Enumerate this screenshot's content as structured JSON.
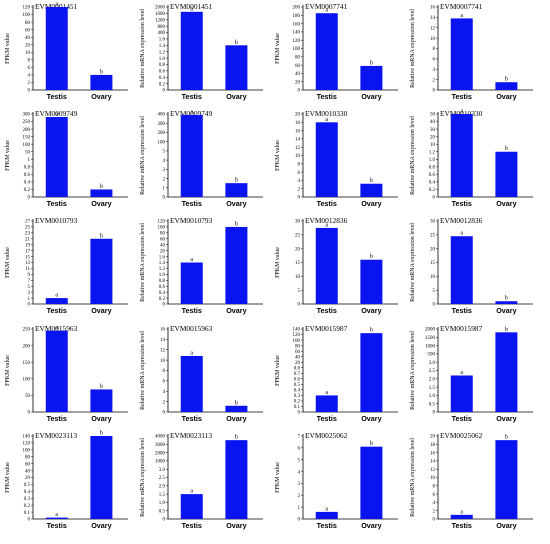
{
  "colors": {
    "bar": "#0A14F0",
    "break_line": "#ffffff",
    "axis": "#000000"
  },
  "chart_data": [
    {
      "type": "bar",
      "title": "EVM0001451",
      "ylabel": "FPKM value",
      "categories": [
        "Testis",
        "Ovary"
      ],
      "values": [
        120,
        4
      ],
      "significance": [
        "a",
        "b"
      ],
      "yticks": [
        "0",
        "2",
        "4",
        "6",
        "8",
        "10",
        "20",
        "40",
        "60",
        "80",
        "100",
        "120"
      ],
      "axis_break": true
    },
    {
      "type": "bar",
      "title": "EVM0001451",
      "ylabel": "Relative mRNA expression level",
      "categories": [
        "Testis",
        "Ovary"
      ],
      "values": [
        1700,
        1.4
      ],
      "significance": [
        "a",
        "b"
      ],
      "yticks": [
        "0",
        "0.2",
        "0.4",
        "0.6",
        "0.8",
        "1.0",
        "1.2",
        "1.4",
        "1.6",
        "400",
        "800",
        "1200",
        "1600",
        "2000"
      ],
      "axis_break": true
    },
    {
      "type": "bar",
      "title": "EVM0007741",
      "ylabel": "FPKM value",
      "categories": [
        "Testis",
        "Ovary"
      ],
      "values": [
        185,
        58
      ],
      "significance": [
        "a",
        "b"
      ],
      "yticks": [
        "0",
        "20",
        "40",
        "60",
        "80",
        "100",
        "120",
        "140",
        "160",
        "180",
        "200"
      ],
      "axis_break": false
    },
    {
      "type": "bar",
      "title": "EVM0007741",
      "ylabel": "Relative mRNA expression level",
      "categories": [
        "Testis",
        "Ovary"
      ],
      "values": [
        13.8,
        1.5
      ],
      "significance": [
        "a",
        "b"
      ],
      "yticks": [
        "0",
        "2",
        "4",
        "6",
        "8",
        "10",
        "12",
        "14",
        "16"
      ],
      "axis_break": false
    },
    {
      "type": "bar",
      "title": "EVM0009749",
      "ylabel": "FPKM value",
      "categories": [
        "Testis",
        "Ovary"
      ],
      "values": [
        280,
        0.2
      ],
      "significance": [
        "a",
        "b"
      ],
      "yticks": [
        "0",
        "0.2",
        "0.4",
        "0.6",
        "0.8",
        "1",
        "50",
        "100",
        "150",
        "200",
        "250",
        "300"
      ],
      "axis_break": true
    },
    {
      "type": "bar",
      "title": "EVM0009749",
      "ylabel": "Relative mRNA expression level",
      "categories": [
        "Testis",
        "Ovary"
      ],
      "values": [
        390,
        1.5
      ],
      "significance": [
        "a",
        "b"
      ],
      "yticks": [
        "0",
        "1",
        "2",
        "3",
        "4",
        "5",
        "100",
        "200",
        "300",
        "400"
      ],
      "axis_break": true
    },
    {
      "type": "bar",
      "title": "EVM0010330",
      "ylabel": "FPKM value",
      "categories": [
        "Testis",
        "Ovary"
      ],
      "values": [
        18,
        3.2
      ],
      "significance": [
        "a",
        "b"
      ],
      "yticks": [
        "0",
        "2",
        "4",
        "6",
        "8",
        "10",
        "12",
        "14",
        "16",
        "18",
        "20"
      ],
      "axis_break": false
    },
    {
      "type": "bar",
      "title": "EVM0010330",
      "ylabel": "Relative mRNA expression level",
      "categories": [
        "Testis",
        "Ovary"
      ],
      "values": [
        50,
        1.2
      ],
      "significance": [
        "a",
        "b"
      ],
      "yticks": [
        "0",
        "0.2",
        "0.4",
        "0.6",
        "0.8",
        "1.0",
        "1.2",
        "10",
        "20",
        "30",
        "40",
        "50"
      ],
      "axis_break": true
    },
    {
      "type": "bar",
      "title": "EVM0010793",
      "ylabel": "FPKM value",
      "categories": [
        "Testis",
        "Ovary"
      ],
      "values": [
        1,
        21
      ],
      "significance": [
        "a",
        "b"
      ],
      "yticks": [
        "0",
        "1",
        "3",
        "5",
        "7",
        "9",
        "11",
        "13",
        "15",
        "17",
        "19",
        "21",
        "23",
        "25",
        "27"
      ],
      "axis_break": false
    },
    {
      "type": "bar",
      "title": "EVM0010793",
      "ylabel": "Relative mRNA expression level",
      "categories": [
        "Testis",
        "Ovary"
      ],
      "values": [
        1.4,
        100
      ],
      "significance": [
        "a",
        "b"
      ],
      "yticks": [
        "0",
        "0.2",
        "0.4",
        "0.6",
        "0.8",
        "1.0",
        "1.2",
        "1.4",
        "1.6",
        "20",
        "40",
        "60",
        "80",
        "100",
        "120"
      ],
      "axis_break": true
    },
    {
      "type": "bar",
      "title": "EVM0012836",
      "ylabel": "FPKM value",
      "categories": [
        "Testis",
        "Ovary"
      ],
      "values": [
        27.5,
        16
      ],
      "significance": [
        "a",
        "b"
      ],
      "yticks": [
        "0",
        "5",
        "10",
        "15",
        "20",
        "25",
        "30"
      ],
      "axis_break": false
    },
    {
      "type": "bar",
      "title": "EVM0012836",
      "ylabel": "Relative mRNA expression level",
      "categories": [
        "Testis",
        "Ovary"
      ],
      "values": [
        24.5,
        1
      ],
      "significance": [
        "a",
        "b"
      ],
      "yticks": [
        "0",
        "5",
        "10",
        "15",
        "20",
        "25",
        "30"
      ],
      "axis_break": false
    },
    {
      "type": "bar",
      "title": "EVM0015963",
      "ylabel": "FPKM value",
      "categories": [
        "Testis",
        "Ovary"
      ],
      "values": [
        245,
        68
      ],
      "significance": [
        "a",
        "b"
      ],
      "yticks": [
        "0",
        "50",
        "100",
        "150",
        "200",
        "250"
      ],
      "axis_break": false
    },
    {
      "type": "bar",
      "title": "EVM0015963",
      "ylabel": "Relative mRNA expression level",
      "categories": [
        "Testis",
        "Ovary"
      ],
      "values": [
        10.8,
        1.2
      ],
      "significance": [
        "a",
        "b"
      ],
      "yticks": [
        "0",
        "2",
        "4",
        "6",
        "8",
        "10",
        "12",
        "14",
        "16"
      ],
      "axis_break": false
    },
    {
      "type": "bar",
      "title": "EVM0015987",
      "ylabel": "FPKM value",
      "categories": [
        "Testis",
        "Ovary"
      ],
      "values": [
        0.3,
        125
      ],
      "significance": [
        "a",
        "b"
      ],
      "yticks": [
        "0",
        "0.1",
        "0.2",
        "0.3",
        "0.4",
        "0.5",
        "0.6",
        "0.7",
        "0.8",
        "20",
        "40",
        "60",
        "80",
        "100",
        "120",
        "140"
      ],
      "axis_break": true
    },
    {
      "type": "bar",
      "title": "EVM0015987",
      "ylabel": "Relative mRNA expression level",
      "categories": [
        "Testis",
        "Ovary"
      ],
      "values": [
        2.2,
        1800
      ],
      "significance": [
        "a",
        "b"
      ],
      "yticks": [
        "0",
        "0.5",
        "1.0",
        "1.5",
        "2.0",
        "2.5",
        "3.0",
        "500",
        "1000",
        "1500",
        "2000"
      ],
      "axis_break": true
    },
    {
      "type": "bar",
      "title": "EVM0023113",
      "ylabel": "FPKM value",
      "categories": [
        "Testis",
        "Ovary"
      ],
      "values": [
        0.02,
        140
      ],
      "significance": [
        "a",
        "b"
      ],
      "yticks": [
        "0",
        "0.1",
        "0.2",
        "0.3",
        "0.4",
        "0.5",
        "20",
        "40",
        "60",
        "80",
        "100",
        "120",
        "140"
      ],
      "axis_break": true
    },
    {
      "type": "bar",
      "title": "EVM0023113",
      "ylabel": "Relative mRNA expression level",
      "categories": [
        "Testis",
        "Ovary"
      ],
      "values": [
        1.5,
        3500
      ],
      "significance": [
        "a",
        "b"
      ],
      "yticks": [
        "0",
        "0.5",
        "1.0",
        "1.5",
        "2.0",
        "2.5",
        "3.0",
        "1000",
        "2000",
        "3000",
        "4000"
      ],
      "axis_break": true
    },
    {
      "type": "bar",
      "title": "EVM0025062",
      "ylabel": "FPKM value",
      "categories": [
        "Testis",
        "Ovary"
      ],
      "values": [
        0.6,
        6.1
      ],
      "significance": [
        "a",
        "b"
      ],
      "yticks": [
        "0",
        "1",
        "2",
        "3",
        "4",
        "5",
        "6",
        "7"
      ],
      "axis_break": false
    },
    {
      "type": "bar",
      "title": "EVM0025062",
      "ylabel": "Relative mRNA expression level",
      "categories": [
        "Testis",
        "Ovary"
      ],
      "values": [
        1,
        19
      ],
      "significance": [
        "a",
        "b"
      ],
      "yticks": [
        "0",
        "2",
        "4",
        "6",
        "8",
        "10",
        "12",
        "14",
        "16",
        "18",
        "20"
      ],
      "axis_break": false
    }
  ]
}
